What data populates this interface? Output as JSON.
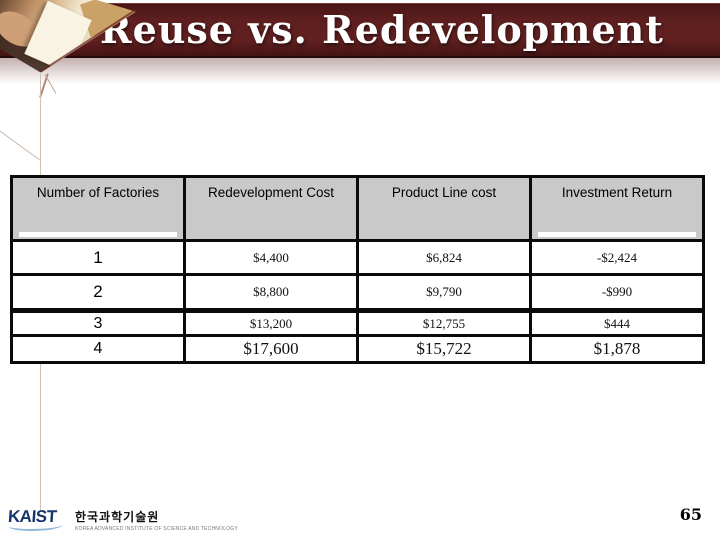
{
  "slide": {
    "title": "Reuse vs. Redevelopment",
    "page_number": "65"
  },
  "table": {
    "headers": [
      "Number of Factories",
      "Redevelopment Cost",
      "Product Line cost",
      "Investment Return"
    ],
    "rows": [
      [
        "1",
        "$4,400",
        "$6,824",
        "-$2,424"
      ],
      [
        "2",
        "$8,800",
        "$9,790",
        "-$990"
      ],
      [
        "3",
        "$13,200",
        "$12,755",
        "$444"
      ],
      [
        "4",
        "$17,600",
        "$15,722",
        "$1,878"
      ]
    ]
  },
  "footer": {
    "logo_text": "KAIST",
    "logo_korean": "한국과학기술원",
    "logo_subtitle": "KOREA ADVANCED INSTITUTE OF SCIENCE AND TECHNOLOGY"
  },
  "colors": {
    "banner_maroon": "#5e1f1f",
    "banner_border": "#2a0b0b",
    "table_header_bg": "#c9c9c9",
    "table_border": "#0a0a0a",
    "kaist_blue": "#17366e",
    "guide_line_tan": "#cfc3b0",
    "title_text": "#ffffff"
  }
}
